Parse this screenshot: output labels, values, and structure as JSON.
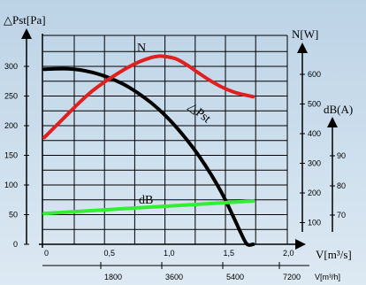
{
  "chart_data": {
    "type": "line",
    "title": "",
    "xlabel": "V[m³/s]",
    "x2label": "V[m³/h]",
    "y_left_label": "△Pst[Pa]",
    "y_right1_label": "N[W]",
    "y_right2_label": "dB(A)",
    "x_ticks": [
      "0",
      "0,5",
      "1,0",
      "1,5",
      "2,0"
    ],
    "x_range": [
      0,
      2.0
    ],
    "x2_ticks": [
      "1800",
      "3600",
      "5400",
      "7200"
    ],
    "y_left_ticks": [
      "0",
      "50",
      "100",
      "150",
      "200",
      "250",
      "300"
    ],
    "y_left_range": [
      0,
      330
    ],
    "y_right1_ticks": [
      "100",
      "200",
      "300",
      "400",
      "500",
      "600"
    ],
    "y_right2_ticks": [
      "70",
      "80",
      "90"
    ],
    "grid": true,
    "series": [
      {
        "name": "△Pst",
        "label": "△Pst",
        "color": "#000000",
        "x": [
          0,
          0.1,
          0.2,
          0.3,
          0.4,
          0.5,
          0.6,
          0.7,
          0.8,
          0.9,
          1.0,
          1.1,
          1.2,
          1.3,
          1.4,
          1.5,
          1.6,
          1.65,
          1.7,
          1.75
        ],
        "values": [
          295,
          296,
          296,
          294,
          290,
          284,
          276,
          266,
          253,
          238,
          220,
          199,
          175,
          148,
          117,
          82,
          40,
          18,
          0,
          0
        ]
      },
      {
        "name": "N",
        "label": "N",
        "color": "#e02020",
        "x": [
          0,
          0.1,
          0.2,
          0.3,
          0.4,
          0.5,
          0.6,
          0.7,
          0.8,
          0.9,
          0.95,
          1.0,
          1.1,
          1.2,
          1.3,
          1.4,
          1.5,
          1.6,
          1.7,
          1.75
        ],
        "values": [
          180,
          200,
          220,
          240,
          258,
          273,
          286,
          298,
          308,
          315,
          317,
          317,
          313,
          302,
          288,
          275,
          264,
          256,
          251,
          249
        ]
      },
      {
        "name": "dB",
        "label": "dB",
        "color": "#33ee33",
        "x": [
          0,
          0.5,
          1.0,
          1.5,
          1.75
        ],
        "values": [
          52,
          58,
          64,
          70,
          73
        ]
      }
    ]
  }
}
